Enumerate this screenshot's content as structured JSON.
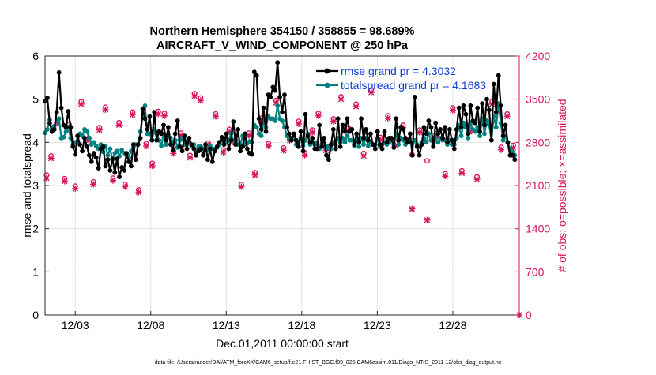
{
  "chart_data": {
    "type": "line",
    "title_line1": "Northern Hemisphere 354150 / 358855 = 98.689%",
    "title_line2": "AIRCRAFT_V_WIND_COMPONENT @ 250 hPa",
    "xlabel": "Dec.01,2011 00:00:00 start",
    "ylabel_left": "rmse and totalspread",
    "ylabel_right": "# of obs: o=possible; ×=assimilated",
    "footnote": "data file: /Users/raeder/DAI/ATM_forcXX/CAM6_setup/f.e21.FHIST_BGC.f09_025.CAM6assim.011/Diags_NTrS_2011-12/obs_diag_output.nc",
    "xlim": [
      1,
      32.4
    ],
    "ylim_left": [
      0,
      6
    ],
    "ylim_right": [
      0,
      4200
    ],
    "x_ticks": [
      3,
      8,
      13,
      18,
      23,
      28
    ],
    "x_tick_labels": [
      "12/03",
      "12/08",
      "12/13",
      "12/18",
      "12/23",
      "12/28"
    ],
    "y_ticks_left": [
      0,
      1,
      2,
      3,
      4,
      5,
      6
    ],
    "y_tick_labels_left": [
      "0",
      "1",
      "2",
      "3",
      "4",
      "5",
      "6"
    ],
    "y_ticks_right": [
      0,
      700,
      1400,
      2100,
      2800,
      3500,
      4200
    ],
    "y_tick_labels_right": [
      "0",
      "700",
      "1400",
      "2100",
      "2800",
      "3500",
      "4200"
    ],
    "grid": true,
    "legend_position": "top-right",
    "colors": {
      "rmse": "#000000",
      "spread": "#00807f",
      "obs": "#d6175f",
      "legend_text": "#0b3fd8",
      "grid": "#e3e3e3"
    },
    "series": [
      {
        "name": "rmse grand pr = 4.3032",
        "color": "#000000",
        "values": [
          4.95,
          5.03,
          4.45,
          4.25,
          4.3,
          4.7,
          5.62,
          4.8,
          4.4,
          4.35,
          4.72,
          4.35,
          3.9,
          3.72,
          4.15,
          3.95,
          3.8,
          4.1,
          3.9,
          3.7,
          3.55,
          3.75,
          3.65,
          3.4,
          3.85,
          3.9,
          3.45,
          3.6,
          3.35,
          3.62,
          3.3,
          3.62,
          3.2,
          3.42,
          3.35,
          3.75,
          3.55,
          3.45,
          3.95,
          3.6,
          3.95,
          4.1,
          4.78,
          4.55,
          4.3,
          4.6,
          4.05,
          4.7,
          4.05,
          4.25,
          4.2,
          4.4,
          4.05,
          4.35,
          3.95,
          3.82,
          4.2,
          4.5,
          3.9,
          3.8,
          4.15,
          3.85,
          4.1,
          3.95,
          3.85,
          3.7,
          3.8,
          3.85,
          3.7,
          3.95,
          3.6,
          3.85,
          3.55,
          3.8,
          3.9,
          4.0,
          4.12,
          3.95,
          4.2,
          3.85,
          4.05,
          4.48,
          3.95,
          4.3,
          3.8,
          3.9,
          4.2,
          3.85,
          3.75,
          3.72,
          5.63,
          5.55,
          4.55,
          4.3,
          4.8,
          4.25,
          5.1,
          5.05,
          5.28,
          5.2,
          5.85,
          5.05,
          4.7,
          5.1,
          4.35,
          4.2,
          4.05,
          4.2,
          4.05,
          3.9,
          4.25,
          3.8,
          4.65,
          4.15,
          4.0,
          4.1,
          3.85,
          3.85,
          4.4,
          3.9,
          4.1,
          3.7,
          3.6,
          3.95,
          4.3,
          3.85,
          4.55,
          3.9,
          4.4,
          4.25,
          4.55,
          4.25,
          4.3,
          3.95,
          4.2,
          4.0,
          4.55,
          4.1,
          4.3,
          4.05,
          4.2,
          3.95,
          3.85,
          4.25,
          3.95,
          3.85,
          4.25,
          4.0,
          4.1,
          4.1,
          3.88,
          4.55,
          4.05,
          4.35,
          4.3,
          4.1,
          4.0,
          4.2,
          3.7,
          5.05,
          3.9,
          3.7,
          3.95,
          4.35,
          4.2,
          4.5,
          4.35,
          3.9,
          4.45,
          4.2,
          4.3,
          4.1,
          4.35,
          4.0,
          4.3,
          4.05,
          3.85,
          4.3,
          4.8,
          4.35,
          4.85,
          4.65,
          4.2,
          4.85,
          4.5,
          4.45,
          4.8,
          4.25,
          4.9,
          4.4,
          5.0,
          4.75,
          4.05,
          5.35,
          4.7,
          5.55,
          4.85,
          4.15,
          4.4,
          4.0,
          3.7,
          3.7,
          3.6
        ]
      },
      {
        "name": "totalspread grand pr = 4.1683",
        "color": "#00807f",
        "values": [
          4.22,
          4.3,
          4.52,
          4.3,
          4.38,
          4.52,
          4.55,
          4.1,
          4.12,
          4.25,
          4.35,
          4.1,
          3.95,
          4.0,
          4.02,
          4.2,
          4.15,
          4.3,
          4.25,
          4.1,
          3.95,
          4.0,
          3.92,
          3.85,
          3.95,
          3.78,
          3.92,
          3.7,
          3.85,
          3.6,
          3.75,
          3.8,
          3.68,
          3.82,
          3.75,
          3.72,
          3.65,
          3.8,
          3.88,
          3.95,
          3.95,
          4.25,
          4.65,
          4.85,
          4.2,
          4.2,
          4.05,
          4.3,
          4.2,
          4.05,
          3.92,
          4.2,
          3.95,
          4.18,
          4.1,
          4.0,
          4.05,
          3.88,
          4.05,
          4.1,
          3.95,
          4.02,
          4.0,
          3.92,
          3.95,
          3.8,
          3.9,
          3.9,
          3.85,
          3.88,
          3.82,
          3.92,
          3.85,
          3.85,
          3.88,
          3.95,
          4.05,
          4.1,
          4.0,
          4.05,
          4.2,
          4.05,
          4.0,
          3.95,
          3.95,
          4.15,
          3.95,
          3.98,
          4.02,
          4.0,
          4.4,
          4.35,
          4.2,
          4.15,
          4.5,
          4.35,
          4.6,
          4.55,
          4.55,
          4.5,
          4.85,
          4.55,
          4.5,
          4.35,
          4.15,
          4.08,
          4.05,
          4.15,
          3.95,
          4.0,
          4.1,
          3.92,
          4.05,
          4.2,
          3.95,
          4.0,
          3.95,
          4.0,
          3.85,
          3.95,
          3.9,
          3.85,
          3.92,
          3.85,
          4.0,
          3.95,
          4.1,
          4.0,
          4.1,
          4.0,
          4.15,
          4.05,
          4.05,
          3.92,
          4.05,
          3.9,
          4.1,
          3.95,
          4.1,
          3.92,
          4.0,
          3.95,
          3.95,
          4.1,
          3.9,
          3.95,
          4.0,
          3.95,
          4.0,
          4.05,
          3.95,
          4.2,
          3.95,
          4.1,
          4.05,
          3.95,
          4.05,
          4.0,
          3.98,
          4.05,
          3.95,
          3.9,
          4.0,
          4.1,
          4.0,
          4.2,
          4.05,
          3.92,
          4.1,
          4.0,
          4.1,
          4.05,
          4.05,
          3.95,
          4.05,
          3.95,
          3.95,
          4.1,
          4.4,
          4.15,
          4.45,
          4.35,
          4.1,
          4.45,
          4.3,
          4.25,
          4.35,
          4.15,
          4.55,
          4.2,
          4.5,
          4.4,
          4.05,
          4.6,
          4.35,
          4.9,
          4.45,
          4.05,
          4.15,
          4.0,
          3.85,
          3.78,
          3.7
        ]
      }
    ],
    "obs_possible_pairs": [
      [
        1.1,
        2270
      ],
      [
        1.4,
        2580
      ],
      [
        1.8,
        3160
      ],
      [
        2.3,
        2210
      ],
      [
        2.6,
        3090
      ],
      [
        3.0,
        2090
      ],
      [
        3.4,
        3460
      ],
      [
        3.9,
        2870
      ],
      [
        4.2,
        2160
      ],
      [
        4.6,
        3040
      ],
      [
        5.0,
        3370
      ],
      [
        5.5,
        2220
      ],
      [
        5.9,
        3120
      ],
      [
        6.3,
        2120
      ],
      [
        6.8,
        3290
      ],
      [
        7.2,
        2030
      ],
      [
        7.7,
        2780
      ],
      [
        8.1,
        2460
      ],
      [
        8.5,
        3300
      ],
      [
        8.9,
        3270
      ],
      [
        9.5,
        2660
      ],
      [
        10.0,
        2950
      ],
      [
        10.6,
        2590
      ],
      [
        10.9,
        3590
      ],
      [
        11.3,
        3520
      ],
      [
        11.8,
        2790
      ],
      [
        12.3,
        3260
      ],
      [
        12.8,
        2680
      ],
      [
        13.2,
        3010
      ],
      [
        13.6,
        2830
      ],
      [
        14.0,
        2120
      ],
      [
        14.5,
        2950
      ],
      [
        14.9,
        2310
      ],
      [
        15.3,
        3190
      ],
      [
        15.8,
        2780
      ],
      [
        16.3,
        3480
      ],
      [
        16.8,
        2710
      ],
      [
        17.2,
        2870
      ],
      [
        17.8,
        3140
      ],
      [
        18.2,
        2630
      ],
      [
        18.7,
        3000
      ],
      [
        19.1,
        3270
      ],
      [
        19.6,
        2710
      ],
      [
        20.1,
        3180
      ],
      [
        20.6,
        3540
      ],
      [
        21.1,
        3030
      ],
      [
        21.6,
        3420
      ],
      [
        22.1,
        2620
      ],
      [
        22.6,
        3650
      ],
      [
        23.2,
        2880
      ],
      [
        23.7,
        3230
      ],
      [
        24.2,
        2790
      ],
      [
        24.7,
        3080
      ],
      [
        25.3,
        2600
      ],
      [
        25.8,
        3000
      ],
      [
        26.3,
        2500
      ],
      [
        26.9,
        2940
      ],
      [
        27.5,
        2290
      ],
      [
        28.0,
        3360
      ],
      [
        28.6,
        2340
      ],
      [
        29.1,
        3010
      ],
      [
        29.6,
        2240
      ],
      [
        30.1,
        3170
      ],
      [
        30.6,
        3460
      ],
      [
        31.2,
        2720
      ],
      [
        31.6,
        3260
      ],
      [
        32.0,
        2750
      ]
    ],
    "obs_assimilated_pairs": [
      [
        1.1,
        2220
      ],
      [
        1.4,
        2540
      ],
      [
        1.8,
        3120
      ],
      [
        2.3,
        2170
      ],
      [
        2.6,
        3050
      ],
      [
        3.0,
        2050
      ],
      [
        3.4,
        3420
      ],
      [
        3.9,
        2830
      ],
      [
        4.2,
        2120
      ],
      [
        4.6,
        3000
      ],
      [
        5.0,
        3330
      ],
      [
        5.5,
        2180
      ],
      [
        5.9,
        3080
      ],
      [
        6.3,
        2080
      ],
      [
        6.8,
        3250
      ],
      [
        7.2,
        1990
      ],
      [
        7.7,
        2740
      ],
      [
        8.1,
        2420
      ],
      [
        8.5,
        3260
      ],
      [
        8.9,
        3230
      ],
      [
        9.5,
        2620
      ],
      [
        10.0,
        2910
      ],
      [
        10.6,
        2550
      ],
      [
        10.9,
        3550
      ],
      [
        11.3,
        3480
      ],
      [
        11.8,
        2750
      ],
      [
        12.3,
        3220
      ],
      [
        12.8,
        2640
      ],
      [
        13.2,
        2970
      ],
      [
        13.6,
        2790
      ],
      [
        14.0,
        2080
      ],
      [
        14.5,
        2910
      ],
      [
        14.9,
        2270
      ],
      [
        15.3,
        3150
      ],
      [
        15.8,
        2740
      ],
      [
        16.3,
        3440
      ],
      [
        16.8,
        2670
      ],
      [
        17.2,
        2830
      ],
      [
        17.8,
        3100
      ],
      [
        18.2,
        2590
      ],
      [
        18.7,
        2960
      ],
      [
        19.1,
        3230
      ],
      [
        19.6,
        2670
      ],
      [
        20.1,
        3140
      ],
      [
        20.6,
        3500
      ],
      [
        21.1,
        2990
      ],
      [
        21.6,
        3380
      ],
      [
        22.1,
        2580
      ],
      [
        22.6,
        3610
      ],
      [
        23.2,
        2840
      ],
      [
        23.7,
        3190
      ],
      [
        24.2,
        2750
      ],
      [
        24.7,
        3040
      ],
      [
        25.3,
        1720
      ],
      [
        25.8,
        2960
      ],
      [
        26.3,
        1540
      ],
      [
        26.9,
        2900
      ],
      [
        27.5,
        2250
      ],
      [
        28.0,
        3320
      ],
      [
        28.6,
        2300
      ],
      [
        29.1,
        2970
      ],
      [
        29.6,
        2200
      ],
      [
        30.1,
        3130
      ],
      [
        30.6,
        3420
      ],
      [
        31.2,
        2680
      ],
      [
        31.6,
        3220
      ],
      [
        32.0,
        2710
      ],
      [
        32.4,
        0
      ]
    ]
  }
}
